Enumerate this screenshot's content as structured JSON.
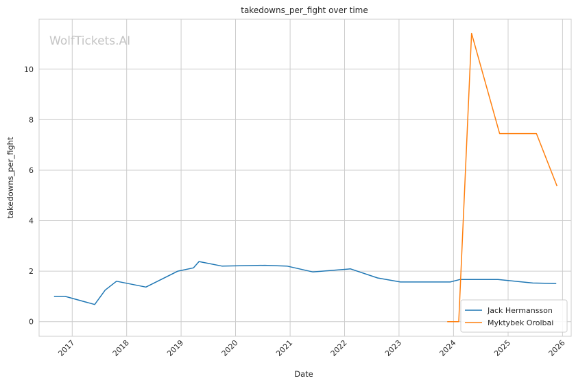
{
  "chart_data": {
    "type": "line",
    "title": "takedowns_per_fight over time",
    "xlabel": "Date",
    "ylabel": "takedowns_per_fight",
    "watermark": "WolfTickets.AI",
    "xlim": [
      "2016-05-24",
      "2026-02-28"
    ],
    "ylim": [
      -0.58,
      11.98
    ],
    "x_ticks": [
      "2017",
      "2018",
      "2019",
      "2020",
      "2021",
      "2022",
      "2023",
      "2024",
      "2025",
      "2026"
    ],
    "y_ticks": [
      0,
      2,
      4,
      6,
      8,
      10
    ],
    "grid": true,
    "legend_position": "bottom-right",
    "series": [
      {
        "name": "Jack Hermansson",
        "color": "#1f77b4",
        "points": [
          [
            "2016-09-01",
            1.0
          ],
          [
            "2016-11-15",
            1.0
          ],
          [
            "2017-06-01",
            0.68
          ],
          [
            "2017-08-10",
            1.25
          ],
          [
            "2017-10-25",
            1.6
          ],
          [
            "2018-05-10",
            1.37
          ],
          [
            "2018-12-10",
            2.0
          ],
          [
            "2019-03-25",
            2.13
          ],
          [
            "2019-05-01",
            2.38
          ],
          [
            "2019-10-01",
            2.2
          ],
          [
            "2020-07-15",
            2.23
          ],
          [
            "2020-12-10",
            2.2
          ],
          [
            "2021-06-01",
            1.97
          ],
          [
            "2022-02-10",
            2.09
          ],
          [
            "2022-08-10",
            1.73
          ],
          [
            "2023-01-10",
            1.57
          ],
          [
            "2023-12-10",
            1.57
          ],
          [
            "2024-02-15",
            1.67
          ],
          [
            "2024-10-25",
            1.67
          ],
          [
            "2025-06-15",
            1.53
          ],
          [
            "2025-11-20",
            1.51
          ]
        ]
      },
      {
        "name": "Myktybek Orolbai",
        "color": "#ff7f0e",
        "points": [
          [
            "2023-11-20",
            0.0
          ],
          [
            "2024-02-05",
            0.0
          ],
          [
            "2024-05-01",
            11.42
          ],
          [
            "2024-11-05",
            7.45
          ],
          [
            "2025-07-10",
            7.45
          ],
          [
            "2025-11-25",
            5.37
          ]
        ]
      }
    ]
  }
}
